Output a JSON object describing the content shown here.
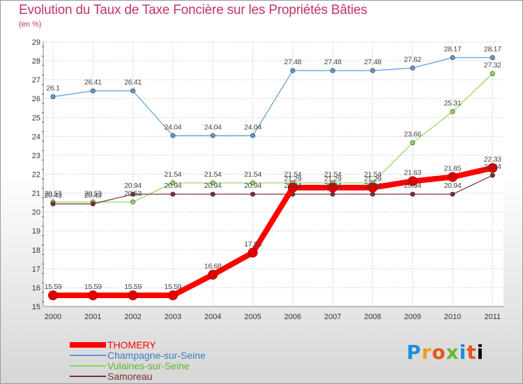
{
  "chart_data": {
    "type": "line",
    "title": "Evolution du Taux de Taxe Foncière sur les Propriétés Bâties",
    "ylabel": "(en %)",
    "xlabel": "",
    "categories": [
      "2000",
      "2001",
      "2002",
      "2003",
      "2004",
      "2005",
      "2006",
      "2007",
      "2008",
      "2009",
      "2010",
      "2011"
    ],
    "ylim": [
      15,
      29
    ],
    "yticks": [
      "15",
      "16",
      "17",
      "18",
      "19",
      "20",
      "21",
      "22",
      "23",
      "24",
      "25",
      "26",
      "27",
      "28",
      "29"
    ],
    "grid": true,
    "series": [
      {
        "name": "THOMERY",
        "color": "#ff0000",
        "values": [
          15.59,
          15.59,
          15.59,
          15.59,
          16.68,
          17.85,
          21.29,
          21.29,
          21.29,
          21.63,
          21.85,
          22.33
        ],
        "labels": [
          "15.59",
          "15.59",
          "15.59",
          "15.59",
          "16.68",
          "17.85",
          "21.29",
          "21.29",
          "21.29",
          "21.63",
          "21.85",
          "22.33"
        ]
      },
      {
        "name": "Champagne-sur-Seine",
        "color": "#5b9bd5",
        "values": [
          26.1,
          26.41,
          26.41,
          24.04,
          24.04,
          24.04,
          27.48,
          27.48,
          27.48,
          27.62,
          28.17,
          28.17
        ],
        "labels": [
          "26.1",
          "26.41",
          "26.41",
          "24.04",
          "24.04",
          "24.04",
          "27.48",
          "27.48",
          "27.48",
          "27.62",
          "28.17",
          "28.17"
        ]
      },
      {
        "name": "Vulaines-sur-Seine",
        "color": "#8ed65a",
        "values": [
          20.53,
          20.53,
          20.53,
          21.54,
          21.54,
          21.54,
          21.54,
          21.54,
          21.54,
          23.66,
          25.31,
          27.32
        ],
        "labels": [
          "20.53",
          "20.53",
          "20.53",
          "21.54",
          "21.54",
          "21.54",
          "21.54",
          "21.54",
          "21.54",
          "23.66",
          "25.31",
          "27.32"
        ]
      },
      {
        "name": "Samoreau",
        "color": "#7a2e33",
        "values": [
          20.43,
          20.43,
          20.94,
          20.94,
          20.94,
          20.94,
          20.94,
          20.94,
          20.94,
          20.94,
          20.94,
          21.94
        ],
        "labels": [
          "20.43",
          "20.43",
          "20.94",
          "20.94",
          "20.94",
          "20.94",
          "20.94",
          "20.94",
          "20.94",
          "20.94",
          "20.94",
          "21.94"
        ]
      }
    ]
  },
  "logo": [
    "P",
    "r",
    "o",
    "x",
    "i",
    "t",
    "i"
  ]
}
